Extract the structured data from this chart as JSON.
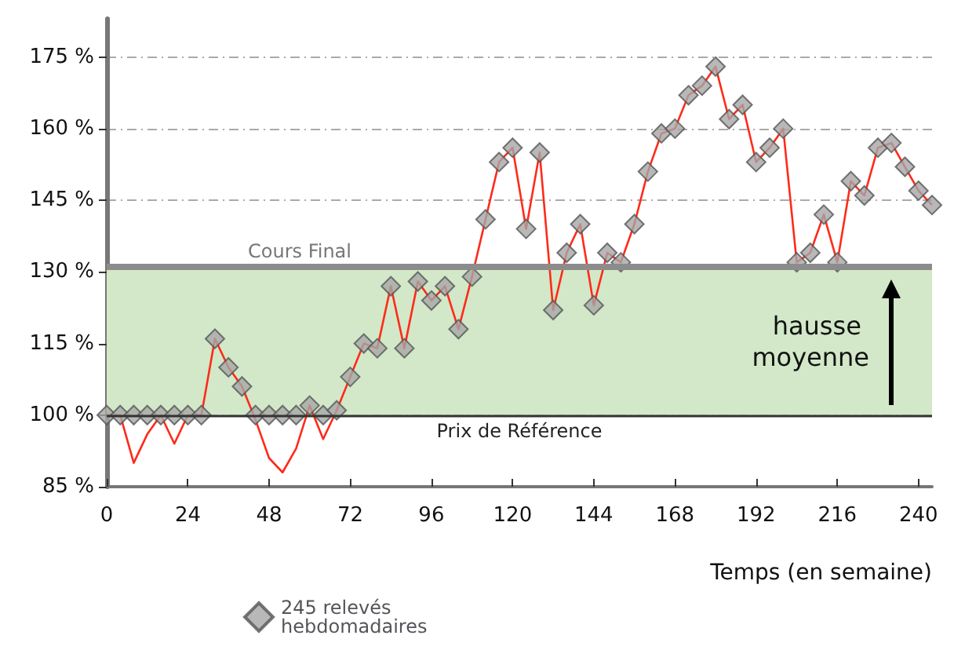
{
  "chart_data": {
    "type": "line",
    "xlabel": "Temps (en semaine)",
    "x": [
      0,
      4,
      8,
      12,
      16,
      20,
      24,
      28,
      32,
      36,
      40,
      44,
      48,
      52,
      56,
      60,
      64,
      68,
      72,
      76,
      80,
      84,
      88,
      92,
      96,
      100,
      104,
      108,
      112,
      116,
      120,
      124,
      128,
      132,
      136,
      140,
      144,
      148,
      152,
      156,
      160,
      164,
      168,
      172,
      176,
      180,
      184,
      188,
      192,
      196,
      200,
      204,
      208,
      212,
      216,
      220,
      224,
      228,
      232,
      236,
      240,
      244
    ],
    "series": [
      {
        "color": "#ff2a1a",
        "marker": "none",
        "values": [
          100,
          100,
          90,
          96,
          100,
          94,
          100,
          100,
          116,
          110,
          106,
          99,
          91,
          88,
          93,
          102,
          95,
          101,
          108,
          115,
          114,
          127,
          114,
          128,
          124,
          127,
          118,
          129,
          141,
          153,
          156,
          139,
          155,
          122,
          134,
          140,
          123,
          134,
          132,
          140,
          151,
          159,
          160,
          167,
          169,
          173,
          162,
          165,
          153,
          156,
          160,
          132,
          134,
          142,
          132,
          149,
          146,
          156,
          157,
          152,
          147,
          144
        ]
      },
      {
        "type": "scatter",
        "name": "245 relevés hebdomadaires",
        "color": "#a6a6a6",
        "marker": "diamond",
        "values": [
          100,
          100,
          100,
          100,
          100,
          100,
          100,
          100,
          116,
          110,
          106,
          100,
          100,
          100,
          100,
          102,
          100,
          101,
          108,
          115,
          114,
          127,
          114,
          128,
          124,
          127,
          118,
          129,
          141,
          153,
          156,
          139,
          155,
          122,
          134,
          140,
          123,
          134,
          132,
          140,
          151,
          159,
          160,
          167,
          169,
          173,
          162,
          165,
          153,
          156,
          160,
          132,
          134,
          142,
          132,
          149,
          146,
          156,
          157,
          152,
          147,
          144
        ]
      }
    ],
    "xlim": [
      0,
      244
    ],
    "xticks": [
      0,
      24,
      48,
      72,
      96,
      120,
      144,
      168,
      192,
      216,
      240
    ],
    "ylim": [
      85,
      183
    ],
    "yticks": [
      {
        "value": 85,
        "label": "85 %"
      },
      {
        "value": 100,
        "label": "100 %"
      },
      {
        "value": 115,
        "label": "115 %"
      },
      {
        "value": 130,
        "label": "130 %"
      },
      {
        "value": 145,
        "label": "145 %"
      },
      {
        "value": 160,
        "label": "160 %"
      },
      {
        "value": 175,
        "label": "175 %"
      }
    ],
    "grid": "y",
    "legend": "bottom",
    "ref_lines": [
      {
        "axis": "y",
        "value": 131,
        "label": "Cours Final",
        "color": "#8c8c8c"
      },
      {
        "axis": "y",
        "value": 100,
        "label": "Prix de Référence",
        "color": "#333333"
      }
    ],
    "bands": [
      {
        "axis": "y",
        "from": 100,
        "to": 131,
        "label": "hausse moyenne",
        "color": "#d2e8c8"
      }
    ]
  }
}
